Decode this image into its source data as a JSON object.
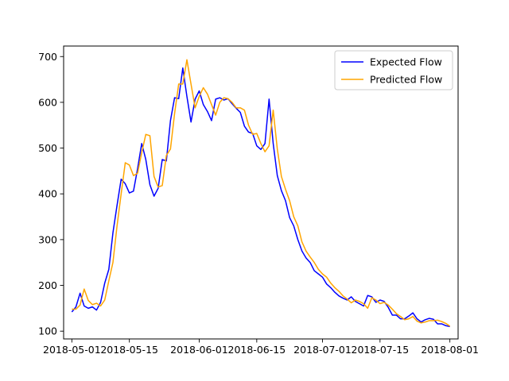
{
  "chart_data": {
    "type": "line",
    "x_type": "date",
    "xlim": [
      "2018-04-29",
      "2018-08-03"
    ],
    "ylim": [
      83,
      723
    ],
    "x_ticks": [
      "2018-05-01",
      "2018-05-15",
      "2018-06-01",
      "2018-06-15",
      "2018-07-01",
      "2018-07-15",
      "2018-08-01"
    ],
    "x_tick_labels": [
      "2018-05-01",
      "2018-05-15",
      "2018-06-01",
      "2018-06-15",
      "2018-07-01",
      "2018-07-15",
      "2018-08-01"
    ],
    "y_ticks": [
      100,
      200,
      300,
      400,
      500,
      600,
      700
    ],
    "y_tick_labels": [
      "100",
      "200",
      "300",
      "400",
      "500",
      "600",
      "700"
    ],
    "grid": false,
    "legend_position": "top-right",
    "series": [
      {
        "name": "Expected Flow",
        "color": "#0000ff",
        "points": [
          [
            "2018-05-01",
            142
          ],
          [
            "2018-05-02",
            153
          ],
          [
            "2018-05-03",
            183
          ],
          [
            "2018-05-04",
            155
          ],
          [
            "2018-05-05",
            150
          ],
          [
            "2018-05-06",
            153
          ],
          [
            "2018-05-07",
            146
          ],
          [
            "2018-05-08",
            163
          ],
          [
            "2018-05-09",
            205
          ],
          [
            "2018-05-10",
            235
          ],
          [
            "2018-05-11",
            315
          ],
          [
            "2018-05-12",
            375
          ],
          [
            "2018-05-13",
            432
          ],
          [
            "2018-05-14",
            422
          ],
          [
            "2018-05-15",
            402
          ],
          [
            "2018-05-16",
            406
          ],
          [
            "2018-05-17",
            455
          ],
          [
            "2018-05-18",
            510
          ],
          [
            "2018-05-19",
            475
          ],
          [
            "2018-05-20",
            420
          ],
          [
            "2018-05-21",
            395
          ],
          [
            "2018-05-22",
            412
          ],
          [
            "2018-05-23",
            475
          ],
          [
            "2018-05-24",
            472
          ],
          [
            "2018-05-25",
            560
          ],
          [
            "2018-05-26",
            610
          ],
          [
            "2018-05-27",
            608
          ],
          [
            "2018-05-28",
            675
          ],
          [
            "2018-05-29",
            613
          ],
          [
            "2018-05-30",
            557
          ],
          [
            "2018-05-31",
            607
          ],
          [
            "2018-06-01",
            625
          ],
          [
            "2018-06-02",
            595
          ],
          [
            "2018-06-03",
            580
          ],
          [
            "2018-06-04",
            560
          ],
          [
            "2018-06-05",
            607
          ],
          [
            "2018-06-06",
            610
          ],
          [
            "2018-06-07",
            605
          ],
          [
            "2018-06-08",
            608
          ],
          [
            "2018-06-09",
            597
          ],
          [
            "2018-06-10",
            587
          ],
          [
            "2018-06-11",
            578
          ],
          [
            "2018-06-12",
            548
          ],
          [
            "2018-06-13",
            535
          ],
          [
            "2018-06-14",
            532
          ],
          [
            "2018-06-15",
            505
          ],
          [
            "2018-06-16",
            497
          ],
          [
            "2018-06-17",
            510
          ],
          [
            "2018-06-18",
            607
          ],
          [
            "2018-06-19",
            510
          ],
          [
            "2018-06-20",
            440
          ],
          [
            "2018-06-21",
            407
          ],
          [
            "2018-06-22",
            385
          ],
          [
            "2018-06-23",
            348
          ],
          [
            "2018-06-24",
            330
          ],
          [
            "2018-06-25",
            300
          ],
          [
            "2018-06-26",
            275
          ],
          [
            "2018-06-27",
            260
          ],
          [
            "2018-06-28",
            250
          ],
          [
            "2018-06-29",
            232
          ],
          [
            "2018-06-30",
            225
          ],
          [
            "2018-07-01",
            218
          ],
          [
            "2018-07-02",
            203
          ],
          [
            "2018-07-03",
            195
          ],
          [
            "2018-07-04",
            185
          ],
          [
            "2018-07-05",
            177
          ],
          [
            "2018-07-06",
            172
          ],
          [
            "2018-07-07",
            168
          ],
          [
            "2018-07-08",
            175
          ],
          [
            "2018-07-09",
            165
          ],
          [
            "2018-07-10",
            160
          ],
          [
            "2018-07-11",
            155
          ],
          [
            "2018-07-12",
            178
          ],
          [
            "2018-07-13",
            175
          ],
          [
            "2018-07-14",
            163
          ],
          [
            "2018-07-15",
            168
          ],
          [
            "2018-07-16",
            165
          ],
          [
            "2018-07-17",
            152
          ],
          [
            "2018-07-18",
            135
          ],
          [
            "2018-07-19",
            135
          ],
          [
            "2018-07-20",
            127
          ],
          [
            "2018-07-21",
            127
          ],
          [
            "2018-07-22",
            133
          ],
          [
            "2018-07-23",
            140
          ],
          [
            "2018-07-24",
            127
          ],
          [
            "2018-07-25",
            120
          ],
          [
            "2018-07-26",
            125
          ],
          [
            "2018-07-27",
            128
          ],
          [
            "2018-07-28",
            126
          ],
          [
            "2018-07-29",
            116
          ],
          [
            "2018-07-30",
            116
          ],
          [
            "2018-07-31",
            112
          ],
          [
            "2018-08-01",
            110
          ]
        ]
      },
      {
        "name": "Predicted Flow",
        "color": "#ffa500",
        "points": [
          [
            "2018-05-01",
            148
          ],
          [
            "2018-05-02",
            148
          ],
          [
            "2018-05-03",
            157
          ],
          [
            "2018-05-04",
            192
          ],
          [
            "2018-05-05",
            167
          ],
          [
            "2018-05-06",
            158
          ],
          [
            "2018-05-07",
            161
          ],
          [
            "2018-05-08",
            155
          ],
          [
            "2018-05-09",
            168
          ],
          [
            "2018-05-10",
            210
          ],
          [
            "2018-05-11",
            250
          ],
          [
            "2018-05-12",
            330
          ],
          [
            "2018-05-13",
            400
          ],
          [
            "2018-05-14",
            468
          ],
          [
            "2018-05-15",
            463
          ],
          [
            "2018-05-16",
            440
          ],
          [
            "2018-05-17",
            445
          ],
          [
            "2018-05-18",
            490
          ],
          [
            "2018-05-19",
            530
          ],
          [
            "2018-05-20",
            527
          ],
          [
            "2018-05-21",
            438
          ],
          [
            "2018-05-22",
            415
          ],
          [
            "2018-05-23",
            418
          ],
          [
            "2018-05-24",
            484
          ],
          [
            "2018-05-25",
            498
          ],
          [
            "2018-05-26",
            575
          ],
          [
            "2018-05-27",
            640
          ],
          [
            "2018-05-28",
            640
          ],
          [
            "2018-05-29",
            693
          ],
          [
            "2018-05-30",
            640
          ],
          [
            "2018-05-31",
            588
          ],
          [
            "2018-06-01",
            613
          ],
          [
            "2018-06-02",
            632
          ],
          [
            "2018-06-03",
            618
          ],
          [
            "2018-06-04",
            595
          ],
          [
            "2018-06-05",
            572
          ],
          [
            "2018-06-06",
            600
          ],
          [
            "2018-06-07",
            610
          ],
          [
            "2018-06-08",
            608
          ],
          [
            "2018-06-09",
            600
          ],
          [
            "2018-06-10",
            588
          ],
          [
            "2018-06-11",
            588
          ],
          [
            "2018-06-12",
            583
          ],
          [
            "2018-06-13",
            550
          ],
          [
            "2018-06-14",
            530
          ],
          [
            "2018-06-15",
            532
          ],
          [
            "2018-06-16",
            510
          ],
          [
            "2018-06-17",
            492
          ],
          [
            "2018-06-18",
            505
          ],
          [
            "2018-06-19",
            583
          ],
          [
            "2018-06-20",
            498
          ],
          [
            "2018-06-21",
            438
          ],
          [
            "2018-06-22",
            410
          ],
          [
            "2018-06-23",
            385
          ],
          [
            "2018-06-24",
            350
          ],
          [
            "2018-06-25",
            330
          ],
          [
            "2018-06-26",
            295
          ],
          [
            "2018-06-27",
            275
          ],
          [
            "2018-06-28",
            262
          ],
          [
            "2018-06-29",
            250
          ],
          [
            "2018-06-30",
            235
          ],
          [
            "2018-07-01",
            225
          ],
          [
            "2018-07-02",
            218
          ],
          [
            "2018-07-03",
            205
          ],
          [
            "2018-07-04",
            195
          ],
          [
            "2018-07-05",
            187
          ],
          [
            "2018-07-06",
            177
          ],
          [
            "2018-07-07",
            170
          ],
          [
            "2018-07-08",
            162
          ],
          [
            "2018-07-09",
            168
          ],
          [
            "2018-07-10",
            165
          ],
          [
            "2018-07-11",
            160
          ],
          [
            "2018-07-12",
            150
          ],
          [
            "2018-07-13",
            173
          ],
          [
            "2018-07-14",
            168
          ],
          [
            "2018-07-15",
            160
          ],
          [
            "2018-07-16",
            163
          ],
          [
            "2018-07-17",
            157
          ],
          [
            "2018-07-18",
            148
          ],
          [
            "2018-07-19",
            138
          ],
          [
            "2018-07-20",
            132
          ],
          [
            "2018-07-21",
            125
          ],
          [
            "2018-07-22",
            127
          ],
          [
            "2018-07-23",
            132
          ],
          [
            "2018-07-24",
            122
          ],
          [
            "2018-07-25",
            118
          ],
          [
            "2018-07-26",
            120
          ],
          [
            "2018-07-27",
            123
          ],
          [
            "2018-07-28",
            123
          ],
          [
            "2018-07-29",
            124
          ],
          [
            "2018-07-30",
            121
          ],
          [
            "2018-07-31",
            117
          ],
          [
            "2018-08-01",
            111
          ]
        ]
      }
    ]
  }
}
